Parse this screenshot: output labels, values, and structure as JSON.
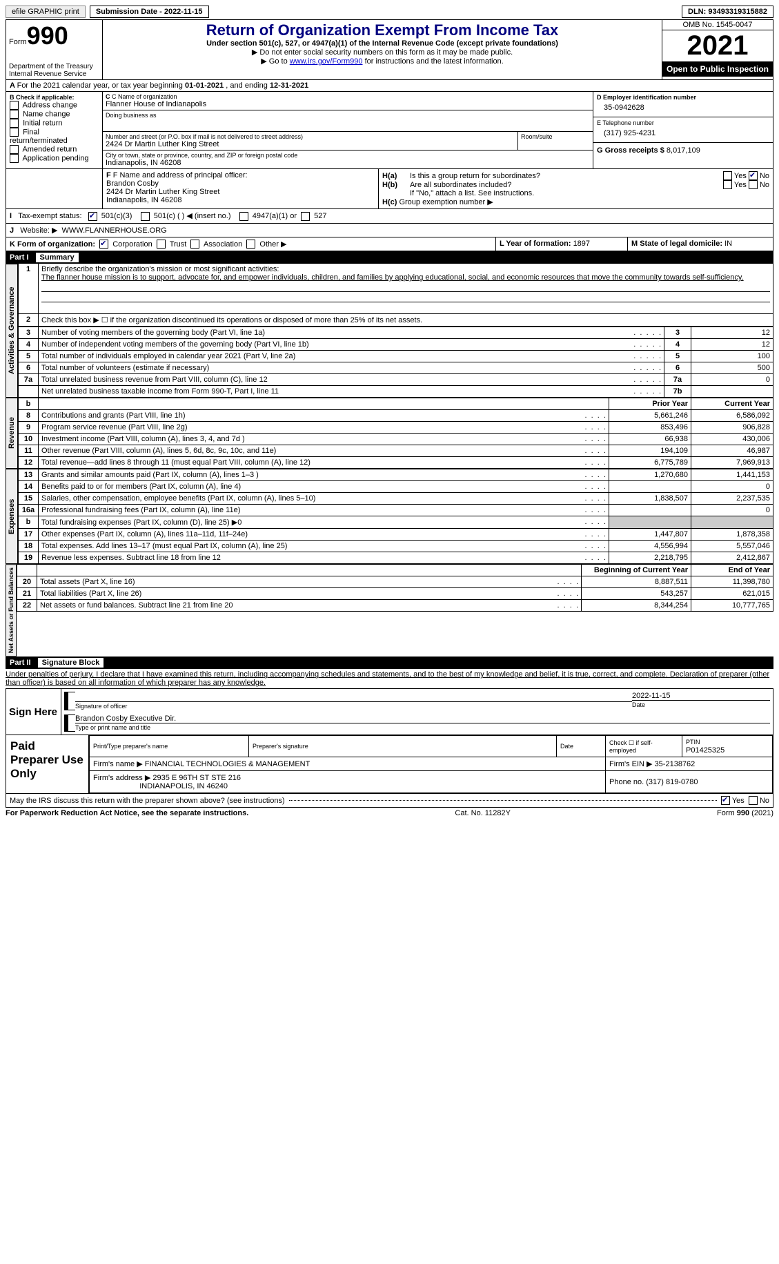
{
  "topbar": {
    "efile": "efile GRAPHIC print",
    "submission": "Submission Date - 2022-11-15",
    "dln": "DLN: 93493319315882"
  },
  "header": {
    "form_prefix": "Form",
    "form_num": "990",
    "title": "Return of Organization Exempt From Income Tax",
    "subtitle": "Under section 501(c), 527, or 4947(a)(1) of the Internal Revenue Code (except private foundations)",
    "note1": "▶ Do not enter social security numbers on this form as it may be made public.",
    "note2_pre": "▶ Go to ",
    "note2_link": "www.irs.gov/Form990",
    "note2_post": " for instructions and the latest information.",
    "dept": "Department of the Treasury\nInternal Revenue Service",
    "omb": "OMB No. 1545-0047",
    "year": "2021",
    "open": "Open to Public Inspection"
  },
  "lineA": {
    "text_pre": "For the 2021 calendar year, or tax year beginning ",
    "begin": "01-01-2021",
    "mid": " , and ending ",
    "end": "12-31-2021"
  },
  "boxB": {
    "label": "B Check if applicable:",
    "items": [
      "Address change",
      "Name change",
      "Initial return",
      "Final return/terminated",
      "Amended return",
      "Application pending"
    ]
  },
  "boxC": {
    "label_name": "C Name of organization",
    "org": "Flanner House of Indianapolis",
    "dba_label": "Doing business as",
    "dba": "",
    "addr_label": "Number and street (or P.O. box if mail is not delivered to street address)",
    "room_label": "Room/suite",
    "addr": "2424 Dr Martin Luther King Street",
    "city_label": "City or town, state or province, country, and ZIP or foreign postal code",
    "city": "Indianapolis, IN  46208"
  },
  "boxD": {
    "label": "D Employer identification number",
    "ein": "35-0942628"
  },
  "boxE": {
    "label": "E Telephone number",
    "phone": "(317) 925-4231"
  },
  "boxG": {
    "label": "G Gross receipts $ ",
    "amount": "8,017,109"
  },
  "boxF": {
    "label": "F Name and address of principal officer:",
    "name": "Brandon Cosby",
    "addr1": "2424 Dr Martin Luther King Street",
    "addr2": "Indianapolis, IN  46208"
  },
  "boxH": {
    "a": "Is this a group return for subordinates?",
    "b": "Are all subordinates included?",
    "note": "If \"No,\" attach a list. See instructions.",
    "c": "Group exemption number ▶",
    "yes": "Yes",
    "no": "No"
  },
  "lineI": {
    "label": "Tax-exempt status:",
    "o1": "501(c)(3)",
    "o2": "501(c) (  ) ◀ (insert no.)",
    "o3": "4947(a)(1) or",
    "o4": "527"
  },
  "lineJ": {
    "label": "Website: ▶",
    "url": "WWW.FLANNERHOUSE.ORG"
  },
  "lineK": {
    "label": "K Form of organization:",
    "o1": "Corporation",
    "o2": "Trust",
    "o3": "Association",
    "o4": "Other ▶"
  },
  "lineL": {
    "label": "L Year of formation: ",
    "val": "1897"
  },
  "lineM": {
    "label": "M State of legal domicile: ",
    "val": "IN"
  },
  "part1": {
    "label": "Part I",
    "title": "Summary",
    "sideA": "Activities & Governance",
    "sideR": "Revenue",
    "sideE": "Expenses",
    "sideN": "Net Assets or Fund Balances",
    "l1a": "Briefly describe the organization's mission or most significant activities:",
    "l1b": "The flanner house mission is to support, advocate for, and empower individuals, children, and families by applying educational, social, and economic resources that move the community towards self-sufficiency.",
    "l2": "Check this box ▶ ☐ if the organization discontinued its operations or disposed of more than 25% of its net assets.",
    "rows_ag": [
      {
        "n": "3",
        "d": "Number of voting members of the governing body (Part VI, line 1a)",
        "box": "3",
        "v": "12"
      },
      {
        "n": "4",
        "d": "Number of independent voting members of the governing body (Part VI, line 1b)",
        "box": "4",
        "v": "12"
      },
      {
        "n": "5",
        "d": "Total number of individuals employed in calendar year 2021 (Part V, line 2a)",
        "box": "5",
        "v": "100"
      },
      {
        "n": "6",
        "d": "Total number of volunteers (estimate if necessary)",
        "box": "6",
        "v": "500"
      },
      {
        "n": "7a",
        "d": "Total unrelated business revenue from Part VIII, column (C), line 12",
        "box": "7a",
        "v": "0"
      },
      {
        "n": "",
        "d": "Net unrelated business taxable income from Form 990-T, Part I, line 11",
        "box": "7b",
        "v": ""
      }
    ],
    "hdr_b": "b",
    "col_py": "Prior Year",
    "col_cy": "Current Year",
    "rows_rev": [
      {
        "n": "8",
        "d": "Contributions and grants (Part VIII, line 1h)",
        "py": "5,661,246",
        "cy": "6,586,092"
      },
      {
        "n": "9",
        "d": "Program service revenue (Part VIII, line 2g)",
        "py": "853,496",
        "cy": "906,828"
      },
      {
        "n": "10",
        "d": "Investment income (Part VIII, column (A), lines 3, 4, and 7d )",
        "py": "66,938",
        "cy": "430,006"
      },
      {
        "n": "11",
        "d": "Other revenue (Part VIII, column (A), lines 5, 6d, 8c, 9c, 10c, and 11e)",
        "py": "194,109",
        "cy": "46,987"
      },
      {
        "n": "12",
        "d": "Total revenue—add lines 8 through 11 (must equal Part VIII, column (A), line 12)",
        "py": "6,775,789",
        "cy": "7,969,913"
      }
    ],
    "rows_exp": [
      {
        "n": "13",
        "d": "Grants and similar amounts paid (Part IX, column (A), lines 1–3 )",
        "py": "1,270,680",
        "cy": "1,441,153"
      },
      {
        "n": "14",
        "d": "Benefits paid to or for members (Part IX, column (A), line 4)",
        "py": "",
        "cy": "0"
      },
      {
        "n": "15",
        "d": "Salaries, other compensation, employee benefits (Part IX, column (A), lines 5–10)",
        "py": "1,838,507",
        "cy": "2,237,535"
      },
      {
        "n": "16a",
        "d": "Professional fundraising fees (Part IX, column (A), line 11e)",
        "py": "",
        "cy": "0"
      },
      {
        "n": "b",
        "d": "Total fundraising expenses (Part IX, column (D), line 25) ▶0",
        "py": "SHADE",
        "cy": "SHADE"
      },
      {
        "n": "17",
        "d": "Other expenses (Part IX, column (A), lines 11a–11d, 11f–24e)",
        "py": "1,447,807",
        "cy": "1,878,358"
      },
      {
        "n": "18",
        "d": "Total expenses. Add lines 13–17 (must equal Part IX, column (A), line 25)",
        "py": "4,556,994",
        "cy": "5,557,046"
      },
      {
        "n": "19",
        "d": "Revenue less expenses. Subtract line 18 from line 12",
        "py": "2,218,795",
        "cy": "2,412,867"
      }
    ],
    "col_boy": "Beginning of Current Year",
    "col_eoy": "End of Year",
    "rows_net": [
      {
        "n": "20",
        "d": "Total assets (Part X, line 16)",
        "py": "8,887,511",
        "cy": "11,398,780"
      },
      {
        "n": "21",
        "d": "Total liabilities (Part X, line 26)",
        "py": "543,257",
        "cy": "621,015"
      },
      {
        "n": "22",
        "d": "Net assets or fund balances. Subtract line 21 from line 20",
        "py": "8,344,254",
        "cy": "10,777,765"
      }
    ]
  },
  "part2": {
    "label": "Part II",
    "title": "Signature Block",
    "decl": "Under penalties of perjury, I declare that I have examined this return, including accompanying schedules and statements, and to the best of my knowledge and belief, it is true, correct, and complete. Declaration of preparer (other than officer) is based on all information of which preparer has any knowledge.",
    "sign_here": "Sign Here",
    "sig_officer": "Signature of officer",
    "sig_date": "2022-11-15",
    "date": "Date",
    "sig_name": "Brandon Cosby  Executive Dir.",
    "sig_type": "Type or print name and title",
    "paid": "Paid Preparer Use Only",
    "pp_name_l": "Print/Type preparer's name",
    "pp_sig_l": "Preparer's signature",
    "pp_date_l": "Date",
    "pp_check": "Check ☐ if self-employed",
    "pp_ptin_l": "PTIN",
    "pp_ptin": "P01425325",
    "firm_name_l": "Firm's name    ▶",
    "firm_name": "FINANCIAL TECHNOLOGIES & MANAGEMENT",
    "firm_ein_l": "Firm's EIN ▶",
    "firm_ein": "35-2138762",
    "firm_addr_l": "Firm's address ▶",
    "firm_addr1": "2935 E 96TH ST STE 216",
    "firm_addr2": "INDIANAPOLIS, IN  46240",
    "firm_phone_l": "Phone no. ",
    "firm_phone": "(317) 819-0780",
    "may_irs": "May the IRS discuss this return with the preparer shown above? (see instructions)",
    "yes": "Yes",
    "no": "No"
  },
  "footer": {
    "pra": "For Paperwork Reduction Act Notice, see the separate instructions.",
    "cat": "Cat. No. 11282Y",
    "form": "Form 990 (2021)"
  }
}
